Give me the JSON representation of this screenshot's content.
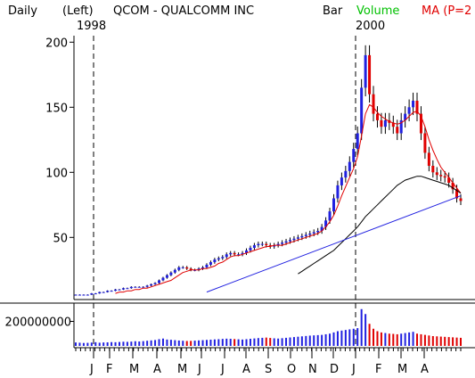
{
  "header": {
    "period": "Daily",
    "scale": "(Left)",
    "symbol_name": "QCOM - QUALCOMM INC",
    "bar_label": "Bar",
    "volume_label": "Volume",
    "ma_label": "MA (P=2",
    "year_1998": "1998",
    "year_2000": "2000"
  },
  "colors": {
    "volume": "#00c000",
    "ma": "#e00000",
    "trendline": "#2020e0",
    "up_bar": "#2020e0",
    "down_bar": "#e00000",
    "axis": "#000000"
  },
  "chart_data": {
    "type": "bar",
    "price": {
      "y_ticks": [
        50,
        100,
        150,
        200
      ],
      "ylim": [
        5,
        205
      ],
      "x_ticks": [
        "J",
        "F",
        "M",
        "A",
        "M",
        "J",
        "J",
        "A",
        "S",
        "O",
        "N",
        "D",
        "J",
        "F",
        "M",
        "A"
      ],
      "closes": [
        6,
        6,
        6,
        6,
        7,
        7,
        8,
        8,
        9,
        9,
        10,
        10,
        11,
        11,
        12,
        12,
        12,
        12,
        13,
        14,
        15,
        17,
        19,
        21,
        23,
        25,
        27,
        27,
        26,
        25,
        25,
        26,
        27,
        29,
        31,
        33,
        34,
        35,
        37,
        38,
        37,
        37,
        38,
        40,
        42,
        44,
        45,
        45,
        44,
        43,
        44,
        45,
        46,
        47,
        48,
        49,
        50,
        51,
        52,
        53,
        54,
        55,
        58,
        63,
        70,
        80,
        90,
        96,
        101,
        108,
        118,
        130,
        165,
        190,
        160,
        145,
        140,
        135,
        140,
        138,
        135,
        130,
        140,
        145,
        150,
        155,
        145,
        130,
        115,
        105,
        100,
        98,
        97,
        96,
        92,
        87,
        80,
        78
      ],
      "ma_values": [
        null,
        null,
        null,
        null,
        null,
        null,
        null,
        null,
        null,
        null,
        7,
        8,
        8,
        9,
        9,
        10,
        10,
        11,
        11,
        12,
        13,
        14,
        15,
        16,
        17,
        19,
        21,
        23,
        24,
        25,
        25,
        25,
        26,
        26,
        27,
        28,
        30,
        31,
        33,
        35,
        36,
        36,
        37,
        38,
        39,
        40,
        41,
        42,
        43,
        43,
        44,
        44,
        44,
        45,
        46,
        47,
        48,
        49,
        50,
        51,
        52,
        53,
        55,
        58,
        62,
        67,
        74,
        82,
        89,
        96,
        103,
        112,
        128,
        145,
        152,
        150,
        146,
        143,
        141,
        139,
        138,
        137,
        138,
        140,
        143,
        146,
        147,
        143,
        135,
        125,
        117,
        110,
        104,
        100,
        96,
        92,
        88,
        84
      ],
      "long_ma_values": [
        null,
        null,
        null,
        null,
        null,
        null,
        null,
        null,
        null,
        null,
        null,
        null,
        null,
        null,
        null,
        null,
        null,
        null,
        null,
        null,
        null,
        null,
        null,
        null,
        null,
        null,
        null,
        null,
        null,
        null,
        null,
        null,
        null,
        null,
        null,
        null,
        null,
        null,
        null,
        null,
        null,
        null,
        null,
        null,
        null,
        null,
        null,
        null,
        null,
        null,
        null,
        null,
        null,
        null,
        null,
        null,
        22,
        24,
        26,
        28,
        30,
        32,
        34,
        36,
        38,
        40,
        43,
        46,
        49,
        52,
        55,
        58,
        62,
        66,
        69,
        72,
        75,
        78,
        81,
        84,
        87,
        90,
        92,
        94,
        95,
        96,
        97,
        97,
        96,
        95,
        94,
        93,
        92,
        91,
        90,
        88,
        86,
        84
      ],
      "trendline": {
        "from": [
          33,
          8
        ],
        "to": [
          97,
          82
        ]
      }
    },
    "volume": {
      "y_ticks": [
        200000000
      ],
      "y_tick_labels": [
        "200000000"
      ],
      "ylim": [
        0,
        320000000
      ],
      "values": [
        28000000,
        26000000,
        24000000,
        25000000,
        27000000,
        30000000,
        26000000,
        28000000,
        29000000,
        31000000,
        30000000,
        32000000,
        34000000,
        33000000,
        35000000,
        38000000,
        36000000,
        39000000,
        42000000,
        45000000,
        48000000,
        55000000,
        60000000,
        52000000,
        50000000,
        47000000,
        44000000,
        42000000,
        40000000,
        41000000,
        43000000,
        45000000,
        47000000,
        49000000,
        51000000,
        53000000,
        55000000,
        57000000,
        59000000,
        58000000,
        56000000,
        54000000,
        52000000,
        55000000,
        58000000,
        61000000,
        64000000,
        66000000,
        68000000,
        65000000,
        62000000,
        60000000,
        63000000,
        66000000,
        69000000,
        72000000,
        75000000,
        78000000,
        81000000,
        84000000,
        86000000,
        88000000,
        90000000,
        95000000,
        100000000,
        110000000,
        120000000,
        125000000,
        130000000,
        135000000,
        140000000,
        145000000,
        300000000,
        260000000,
        180000000,
        140000000,
        120000000,
        110000000,
        105000000,
        100000000,
        98000000,
        95000000,
        100000000,
        105000000,
        110000000,
        115000000,
        100000000,
        95000000,
        90000000,
        85000000,
        80000000,
        78000000,
        76000000,
        74000000,
        72000000,
        70000000,
        68000000,
        66000000
      ]
    }
  }
}
